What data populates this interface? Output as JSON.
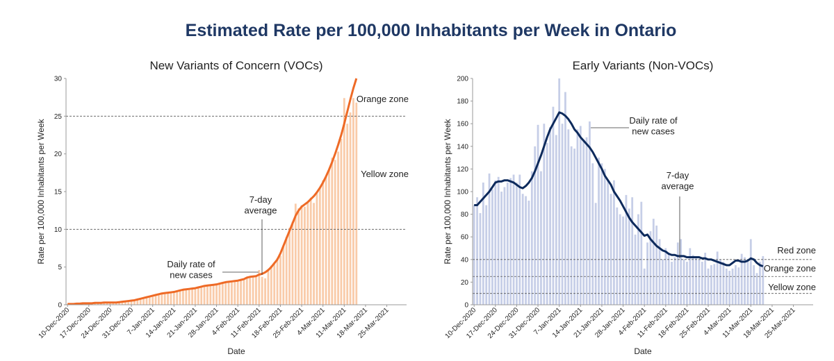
{
  "title": "Estimated Rate per 100,000 Inhabitants per Week in Ontario",
  "chart_data": [
    {
      "type": "bar_line",
      "title": "New Variants of Concern (VOCs)",
      "x_label": "Date",
      "y_label": "Rate per 100,000 Inhabitants per Week",
      "categories": [
        "10-Dec-2020",
        null,
        null,
        null,
        null,
        null,
        null,
        "17-Dec-2020",
        null,
        null,
        null,
        null,
        null,
        null,
        "24-Dec-2020",
        null,
        null,
        null,
        null,
        null,
        null,
        "31-Dec-2020",
        null,
        null,
        null,
        null,
        null,
        null,
        "7-Jan-2021",
        null,
        null,
        null,
        null,
        null,
        null,
        "14-Jan-2021",
        null,
        null,
        null,
        null,
        null,
        null,
        "21-Jan-2021",
        null,
        null,
        null,
        null,
        null,
        null,
        "28-Jan-2021",
        null,
        null,
        null,
        null,
        null,
        null,
        "4-Feb-2021",
        null,
        null,
        null,
        null,
        null,
        null,
        "11-Feb-2021",
        null,
        null,
        null,
        null,
        null,
        null,
        "18-Feb-2021",
        null,
        null,
        null,
        null,
        null,
        null,
        "25-Feb-2021",
        null,
        null,
        null,
        null,
        null,
        null,
        "4-Mar-2021",
        null,
        null,
        null,
        null,
        null,
        null,
        "11-Mar-2021",
        null,
        null,
        null,
        null,
        null,
        null,
        "18-Mar-2021",
        null,
        null,
        null,
        null,
        null,
        null,
        "25-Mar-2021",
        null,
        null,
        null,
        null,
        null,
        null
      ],
      "series": [
        {
          "name": "Daily rate of new cases",
          "kind": "bar",
          "color": "#f9cba9",
          "values": [
            0.1,
            0.1,
            0.1,
            0.1,
            0.2,
            0.2,
            0.2,
            0.2,
            0.2,
            0.3,
            0.2,
            0.3,
            0.3,
            0.3,
            0.3,
            0.3,
            0.2,
            0.4,
            0.4,
            0.5,
            0.5,
            0.6,
            0.5,
            0.7,
            0.9,
            0.9,
            1.0,
            1.2,
            1.2,
            1.4,
            1.3,
            1.5,
            1.6,
            1.6,
            1.7,
            1.7,
            1.9,
            1.8,
            2.0,
            2.1,
            2.1,
            2.2,
            2.2,
            2.3,
            2.5,
            2.5,
            2.6,
            2.6,
            2.7,
            2.7,
            2.9,
            2.8,
            3.0,
            3.1,
            3.0,
            3.2,
            3.2,
            3.3,
            3.5,
            3.6,
            3.7,
            3.8,
            3.8,
            4.6,
            3.7,
            3.5,
            4.5,
            5.2,
            5.6,
            6.2,
            6.5,
            7.8,
            9.0,
            10.2,
            11.0,
            13.4,
            12.8,
            13.2,
            13.0,
            13.5,
            14.2,
            13.5,
            14.8,
            15.6,
            16.5,
            17.0,
            18.0,
            19.5,
            19.2,
            20.3,
            22.0,
            27.4,
            24.0,
            25.5,
            27.4,
            26.8,
            null,
            null,
            null,
            null,
            null,
            null,
            null,
            null,
            null,
            null,
            null,
            null,
            null,
            null,
            null,
            null
          ]
        },
        {
          "name": "7-day average",
          "kind": "line",
          "color": "#ee6a26",
          "values": [
            0.1,
            0.1,
            0.1,
            0.15,
            0.15,
            0.2,
            0.2,
            0.2,
            0.2,
            0.25,
            0.25,
            0.25,
            0.3,
            0.3,
            0.3,
            0.3,
            0.3,
            0.35,
            0.4,
            0.45,
            0.5,
            0.55,
            0.6,
            0.7,
            0.8,
            0.9,
            1.0,
            1.1,
            1.2,
            1.3,
            1.4,
            1.5,
            1.55,
            1.6,
            1.65,
            1.7,
            1.8,
            1.9,
            2.0,
            2.05,
            2.1,
            2.15,
            2.2,
            2.3,
            2.4,
            2.5,
            2.55,
            2.6,
            2.65,
            2.7,
            2.8,
            2.9,
            3.0,
            3.05,
            3.1,
            3.15,
            3.2,
            3.3,
            3.4,
            3.6,
            3.7,
            3.75,
            3.8,
            4.0,
            4.1,
            4.3,
            4.6,
            5.0,
            5.5,
            6.0,
            6.8,
            7.8,
            8.8,
            9.8,
            10.8,
            11.8,
            12.5,
            13.0,
            13.3,
            13.6,
            14.0,
            14.4,
            14.9,
            15.5,
            16.2,
            17.0,
            17.9,
            18.9,
            20.0,
            21.2,
            22.5,
            24.0,
            25.6,
            27.2,
            28.7,
            30.0,
            null,
            null,
            null,
            null,
            null,
            null,
            null,
            null,
            null,
            null,
            null,
            null,
            null,
            null,
            null,
            null
          ]
        }
      ],
      "ylim": [
        0,
        30
      ],
      "yticks": [
        0,
        5,
        10,
        15,
        20,
        25,
        30
      ],
      "zone_lines": [
        25,
        10
      ],
      "zone_labels": [
        "Orange zone",
        "Yellow zone"
      ],
      "annotations": [
        "Daily rate of\nnew cases",
        "7-day\naverage"
      ]
    },
    {
      "type": "bar_line",
      "title": "Early Variants (Non-VOCs)",
      "x_label": "Date",
      "y_label": "Rate per 100,000 Inhabitants per Week",
      "categories": [
        "10-Dec-2020",
        null,
        null,
        null,
        null,
        null,
        null,
        "17-Dec-2020",
        null,
        null,
        null,
        null,
        null,
        null,
        "24-Dec-2020",
        null,
        null,
        null,
        null,
        null,
        null,
        "31-Dec-2020",
        null,
        null,
        null,
        null,
        null,
        null,
        "7-Jan-2021",
        null,
        null,
        null,
        null,
        null,
        null,
        "14-Jan-2021",
        null,
        null,
        null,
        null,
        null,
        null,
        "21-Jan-2021",
        null,
        null,
        null,
        null,
        null,
        null,
        "28-Jan-2021",
        null,
        null,
        null,
        null,
        null,
        null,
        "4-Feb-2021",
        null,
        null,
        null,
        null,
        null,
        null,
        "11-Feb-2021",
        null,
        null,
        null,
        null,
        null,
        null,
        "18-Feb-2021",
        null,
        null,
        null,
        null,
        null,
        null,
        "25-Feb-2021",
        null,
        null,
        null,
        null,
        null,
        null,
        "4-Mar-2021",
        null,
        null,
        null,
        null,
        null,
        null,
        "11-Mar-2021",
        null,
        null,
        null,
        null,
        null,
        null,
        "18-Mar-2021",
        null,
        null,
        null,
        null,
        null,
        null,
        "25-Mar-2021",
        null,
        null,
        null,
        null,
        null,
        null
      ],
      "series": [
        {
          "name": "Daily rate of new cases",
          "kind": "bar",
          "color": "#c6cee7",
          "values": [
            88,
            95,
            81,
            108,
            88,
            116,
            102,
            110,
            113,
            100,
            104,
            108,
            112,
            115,
            108,
            115,
            98,
            96,
            92,
            118,
            140,
            159,
            118,
            160,
            143,
            157,
            175,
            150,
            200,
            160,
            188,
            155,
            140,
            138,
            155,
            158,
            146,
            148,
            162,
            125,
            90,
            130,
            125,
            120,
            110,
            98,
            110,
            86,
            80,
            78,
            97,
            85,
            95,
            62,
            80,
            91,
            32,
            55,
            65,
            76,
            70,
            58,
            40,
            50,
            46,
            38,
            42,
            55,
            58,
            40,
            38,
            50,
            44,
            42,
            40,
            38,
            46,
            32,
            35,
            36,
            47,
            40,
            38,
            32,
            30,
            32,
            35,
            33,
            45,
            42,
            38,
            58,
            35,
            28,
            38,
            43,
            null,
            null,
            null,
            null,
            null,
            null,
            null,
            null,
            null,
            null,
            null,
            null,
            null,
            null,
            null,
            null
          ]
        },
        {
          "name": "7-day average",
          "kind": "line",
          "color": "#0d2a5c",
          "values": [
            88,
            88,
            91,
            94,
            97,
            100,
            104,
            108,
            109,
            109,
            110,
            110,
            109,
            108,
            106,
            104,
            103,
            105,
            108,
            112,
            118,
            125,
            132,
            140,
            148,
            155,
            160,
            165,
            170,
            169,
            167,
            164,
            160,
            155,
            152,
            148,
            145,
            142,
            139,
            135,
            130,
            125,
            120,
            114,
            110,
            106,
            100,
            96,
            92,
            87,
            82,
            77,
            73,
            70,
            67,
            64,
            61,
            62,
            58,
            55,
            52,
            50,
            48,
            47,
            45,
            44,
            44,
            43,
            43,
            43,
            42,
            42,
            42,
            42,
            42,
            41,
            41,
            40,
            40,
            39,
            38,
            37,
            36,
            35,
            35,
            37,
            39,
            39,
            38,
            38,
            39,
            41,
            40,
            37,
            35,
            34,
            null,
            null,
            null,
            null,
            null,
            null,
            null,
            null,
            null,
            null,
            null,
            null,
            null,
            null,
            null,
            null
          ]
        }
      ],
      "ylim": [
        0,
        200
      ],
      "yticks": [
        0,
        20,
        40,
        60,
        80,
        100,
        120,
        140,
        160,
        180,
        200
      ],
      "zone_lines": [
        40,
        25,
        10
      ],
      "zone_labels": [
        "Red zone",
        "Orange zone",
        "Yellow zone"
      ],
      "annotations": [
        "Daily rate of\nnew cases",
        "7-day\naverage"
      ]
    }
  ]
}
